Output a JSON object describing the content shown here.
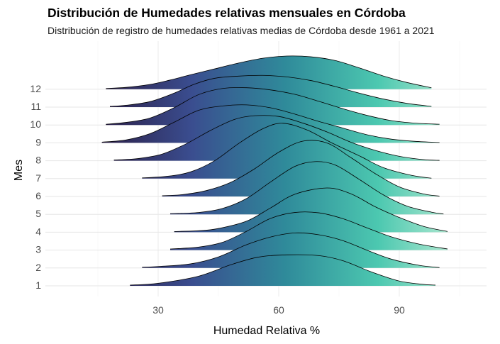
{
  "title": "Distribución de Humedades relativas mensuales en Córdoba",
  "subtitle": "Distribución de registro de humedades relativas medias de Córdoba desde 1961 a 2021",
  "chart_data": {
    "type": "ridgeline",
    "title": "Distribución de Humedades relativas mensuales en Córdoba",
    "subtitle": "Distribución de registro de humedades relativas medias de Córdoba desde 1961 a 2021",
    "xlabel": "Humedad Relativa %",
    "ylabel": "Mes",
    "xlim": [
      6,
      117
    ],
    "x_ticks": [
      30,
      60,
      90
    ],
    "categories": [
      "1",
      "2",
      "3",
      "4",
      "5",
      "6",
      "7",
      "8",
      "9",
      "10",
      "11",
      "12"
    ],
    "fill_gradient": {
      "colormap": "mako-like",
      "stops": [
        "#2b1d45",
        "#3a4d8f",
        "#2f8a9a",
        "#4cc8b0",
        "#c8f0d8"
      ]
    },
    "grid": true,
    "series": [
      {
        "name": "1",
        "points": [
          [
            23,
            0.02
          ],
          [
            30,
            0.07
          ],
          [
            40,
            0.26
          ],
          [
            48,
            0.57
          ],
          [
            55,
            0.78
          ],
          [
            62,
            0.84
          ],
          [
            70,
            0.82
          ],
          [
            76,
            0.68
          ],
          [
            83,
            0.38
          ],
          [
            90,
            0.13
          ],
          [
            96,
            0.04
          ],
          [
            99,
            0.02
          ]
        ]
      },
      {
        "name": "2",
        "points": [
          [
            26,
            0.02
          ],
          [
            30,
            0.04
          ],
          [
            38,
            0.11
          ],
          [
            45,
            0.3
          ],
          [
            52,
            0.63
          ],
          [
            58,
            0.84
          ],
          [
            64,
            0.95
          ],
          [
            70,
            0.9
          ],
          [
            76,
            0.74
          ],
          [
            82,
            0.48
          ],
          [
            88,
            0.24
          ],
          [
            95,
            0.07
          ],
          [
            100,
            0.01
          ]
        ]
      },
      {
        "name": "3",
        "points": [
          [
            33,
            0.03
          ],
          [
            40,
            0.08
          ],
          [
            46,
            0.21
          ],
          [
            52,
            0.51
          ],
          [
            58,
            0.86
          ],
          [
            64,
            1.02
          ],
          [
            70,
            1.01
          ],
          [
            76,
            0.85
          ],
          [
            82,
            0.6
          ],
          [
            88,
            0.36
          ],
          [
            95,
            0.16
          ],
          [
            102,
            0.03
          ]
        ]
      },
      {
        "name": "4",
        "points": [
          [
            34,
            0.02
          ],
          [
            40,
            0.04
          ],
          [
            45,
            0.1
          ],
          [
            52,
            0.3
          ],
          [
            58,
            0.66
          ],
          [
            64,
            1.03
          ],
          [
            72,
            1.2
          ],
          [
            78,
            1.04
          ],
          [
            84,
            0.69
          ],
          [
            90,
            0.4
          ],
          [
            96,
            0.16
          ],
          [
            102,
            0.02
          ]
        ]
      },
      {
        "name": "5",
        "points": [
          [
            33,
            0.02
          ],
          [
            40,
            0.05
          ],
          [
            46,
            0.16
          ],
          [
            52,
            0.43
          ],
          [
            58,
            0.88
          ],
          [
            64,
            1.3
          ],
          [
            69,
            1.43
          ],
          [
            74,
            1.34
          ],
          [
            80,
            0.95
          ],
          [
            86,
            0.53
          ],
          [
            92,
            0.22
          ],
          [
            98,
            0.06
          ],
          [
            101,
            0.01
          ]
        ]
      },
      {
        "name": "6",
        "points": [
          [
            31,
            0.02
          ],
          [
            36,
            0.05
          ],
          [
            42,
            0.16
          ],
          [
            48,
            0.38
          ],
          [
            54,
            0.75
          ],
          [
            60,
            1.2
          ],
          [
            66,
            1.5
          ],
          [
            72,
            1.45
          ],
          [
            78,
            1.05
          ],
          [
            84,
            0.62
          ],
          [
            90,
            0.26
          ],
          [
            96,
            0.07
          ],
          [
            100,
            0.01
          ]
        ]
      },
      {
        "name": "7",
        "points": [
          [
            26,
            0.02
          ],
          [
            32,
            0.06
          ],
          [
            38,
            0.18
          ],
          [
            44,
            0.48
          ],
          [
            50,
            0.95
          ],
          [
            56,
            1.35
          ],
          [
            61,
            1.5
          ],
          [
            67,
            1.32
          ],
          [
            73,
            0.98
          ],
          [
            80,
            0.62
          ],
          [
            86,
            0.3
          ],
          [
            93,
            0.09
          ],
          [
            98,
            0.01
          ]
        ]
      },
      {
        "name": "8",
        "points": [
          [
            19,
            0.02
          ],
          [
            25,
            0.06
          ],
          [
            31,
            0.18
          ],
          [
            37,
            0.46
          ],
          [
            43,
            0.82
          ],
          [
            49,
            1.12
          ],
          [
            54,
            1.22
          ],
          [
            60,
            1.2
          ],
          [
            66,
            1.02
          ],
          [
            72,
            0.78
          ],
          [
            78,
            0.5
          ],
          [
            84,
            0.28
          ],
          [
            90,
            0.12
          ],
          [
            96,
            0.03
          ],
          [
            100,
            0.01
          ]
        ]
      },
      {
        "name": "9",
        "points": [
          [
            16,
            0.02
          ],
          [
            22,
            0.08
          ],
          [
            28,
            0.25
          ],
          [
            34,
            0.56
          ],
          [
            40,
            0.88
          ],
          [
            46,
            1.0
          ],
          [
            52,
            1.03
          ],
          [
            58,
            0.95
          ],
          [
            64,
            0.78
          ],
          [
            70,
            0.58
          ],
          [
            76,
            0.4
          ],
          [
            82,
            0.22
          ],
          [
            88,
            0.1
          ],
          [
            94,
            0.04
          ],
          [
            100,
            0.01
          ]
        ]
      },
      {
        "name": "10",
        "points": [
          [
            17,
            0.02
          ],
          [
            22,
            0.07
          ],
          [
            28,
            0.19
          ],
          [
            34,
            0.47
          ],
          [
            40,
            0.82
          ],
          [
            46,
            0.99
          ],
          [
            52,
            1.01
          ],
          [
            58,
            0.95
          ],
          [
            64,
            0.83
          ],
          [
            70,
            0.64
          ],
          [
            76,
            0.44
          ],
          [
            82,
            0.26
          ],
          [
            88,
            0.12
          ],
          [
            94,
            0.05
          ],
          [
            100,
            0.02
          ]
        ]
      },
      {
        "name": "11",
        "points": [
          [
            18,
            0.02
          ],
          [
            22,
            0.05
          ],
          [
            28,
            0.15
          ],
          [
            34,
            0.38
          ],
          [
            39,
            0.62
          ],
          [
            44,
            0.78
          ],
          [
            50,
            0.84
          ],
          [
            56,
            0.86
          ],
          [
            62,
            0.82
          ],
          [
            68,
            0.72
          ],
          [
            74,
            0.56
          ],
          [
            80,
            0.38
          ],
          [
            86,
            0.22
          ],
          [
            92,
            0.1
          ],
          [
            98,
            0.02
          ]
        ]
      },
      {
        "name": "12",
        "points": [
          [
            17,
            0.02
          ],
          [
            22,
            0.05
          ],
          [
            28,
            0.13
          ],
          [
            33,
            0.25
          ],
          [
            38,
            0.39
          ],
          [
            44,
            0.55
          ],
          [
            50,
            0.71
          ],
          [
            56,
            0.84
          ],
          [
            62,
            0.9
          ],
          [
            68,
            0.88
          ],
          [
            74,
            0.78
          ],
          [
            80,
            0.58
          ],
          [
            86,
            0.36
          ],
          [
            92,
            0.18
          ],
          [
            98,
            0.04
          ]
        ]
      }
    ]
  }
}
